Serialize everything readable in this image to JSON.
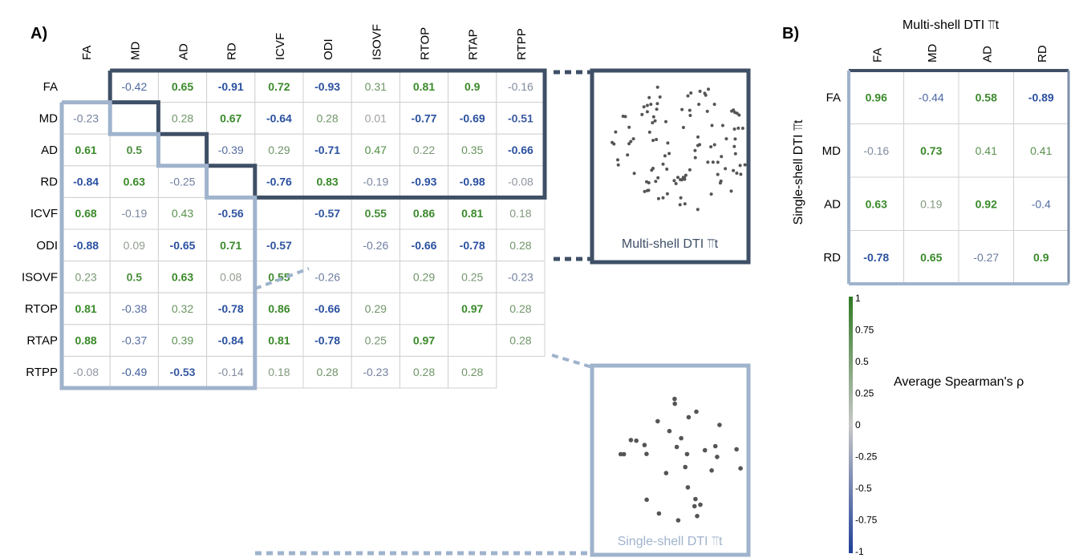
{
  "panel_a": {
    "label": "A)",
    "variables": [
      "FA",
      "MD",
      "AD",
      "RD",
      "ICVF",
      "ODI",
      "ISOVF",
      "RTOP",
      "RTAP",
      "RTPP"
    ],
    "multi_label": "Multi-shell DTI ⫪t",
    "single_label": "Single-shell DTI ⫪t"
  },
  "panel_b": {
    "label": "B)",
    "variables": [
      "FA",
      "MD",
      "AD",
      "RD"
    ],
    "top_title": "Multi-shell DTI ⫪t",
    "side_title": "Single-shell DTI ⫪t"
  },
  "colorbar": {
    "ticks": [
      "1",
      "0.75",
      "0.5",
      "0.25",
      "0",
      "-0.25",
      "-0.5",
      "-0.75",
      "-1"
    ],
    "label": "Average Spearman's ρ"
  },
  "colors": {
    "positive": "#3a8a2a",
    "negative": "#2a50a0",
    "neutral": "#a0a0a0",
    "multi_border": "#3e4f66",
    "single_border": "#9fb3cc"
  },
  "chart_data": [
    {
      "type": "heatmap",
      "title": "",
      "rows": [
        "FA",
        "MD",
        "AD",
        "RD",
        "ICVF",
        "ODI",
        "ISOVF",
        "RTOP",
        "RTAP",
        "RTPP"
      ],
      "cols": [
        "FA",
        "MD",
        "AD",
        "RD",
        "ICVF",
        "ODI",
        "ISOVF",
        "RTOP",
        "RTAP",
        "RTPP"
      ],
      "upper": [
        [
          null,
          -0.42,
          0.65,
          -0.91,
          0.72,
          -0.93,
          0.31,
          0.81,
          0.9,
          -0.16
        ],
        [
          null,
          null,
          0.28,
          0.67,
          -0.64,
          0.28,
          0.01,
          -0.77,
          -0.69,
          -0.51
        ],
        [
          null,
          null,
          null,
          -0.39,
          0.29,
          -0.71,
          0.47,
          0.22,
          0.35,
          -0.66
        ],
        [
          null,
          null,
          null,
          null,
          -0.76,
          0.83,
          -0.19,
          -0.93,
          -0.98,
          -0.08
        ],
        [
          null,
          null,
          null,
          null,
          null,
          -0.57,
          0.55,
          0.86,
          0.81,
          0.18
        ],
        [
          null,
          null,
          null,
          null,
          null,
          null,
          -0.26,
          -0.66,
          -0.78,
          0.28
        ],
        [
          null,
          null,
          null,
          null,
          null,
          null,
          null,
          0.29,
          0.25,
          -0.23
        ],
        [
          null,
          null,
          null,
          null,
          null,
          null,
          null,
          null,
          0.97,
          0.28
        ],
        [
          null,
          null,
          null,
          null,
          null,
          null,
          null,
          null,
          null,
          0.28
        ],
        [
          null,
          null,
          null,
          null,
          null,
          null,
          null,
          null,
          null,
          null
        ]
      ],
      "lower": [
        [
          null,
          null,
          null,
          null,
          null,
          null,
          null,
          null,
          null,
          null
        ],
        [
          -0.23,
          null,
          null,
          null,
          null,
          null,
          null,
          null,
          null,
          null
        ],
        [
          0.61,
          0.5,
          null,
          null,
          null,
          null,
          null,
          null,
          null,
          null
        ],
        [
          -0.84,
          0.63,
          -0.25,
          null,
          null,
          null,
          null,
          null,
          null,
          null
        ],
        [
          0.68,
          -0.19,
          0.43,
          -0.56,
          null,
          null,
          null,
          null,
          null,
          null
        ],
        [
          -0.88,
          0.09,
          -0.65,
          0.71,
          -0.57,
          null,
          null,
          null,
          null,
          null
        ],
        [
          0.23,
          0.5,
          0.63,
          0.08,
          0.55,
          -0.26,
          null,
          null,
          null,
          null
        ],
        [
          0.81,
          -0.38,
          0.32,
          -0.78,
          0.86,
          -0.66,
          0.29,
          null,
          null,
          null
        ],
        [
          0.88,
          -0.37,
          0.39,
          -0.84,
          0.81,
          -0.78,
          0.25,
          0.97,
          null,
          null
        ],
        [
          -0.08,
          -0.49,
          -0.53,
          -0.14,
          0.18,
          0.28,
          -0.23,
          0.28,
          0.28,
          null
        ]
      ]
    },
    {
      "type": "heatmap",
      "title": "",
      "rows": [
        "FA",
        "MD",
        "AD",
        "RD"
      ],
      "cols": [
        "FA",
        "MD",
        "AD",
        "RD"
      ],
      "values": [
        [
          0.96,
          -0.44,
          0.58,
          -0.89
        ],
        [
          -0.16,
          0.73,
          0.41,
          0.41
        ],
        [
          0.63,
          0.19,
          0.92,
          -0.4
        ],
        [
          -0.78,
          0.65,
          -0.27,
          0.9
        ]
      ]
    }
  ]
}
